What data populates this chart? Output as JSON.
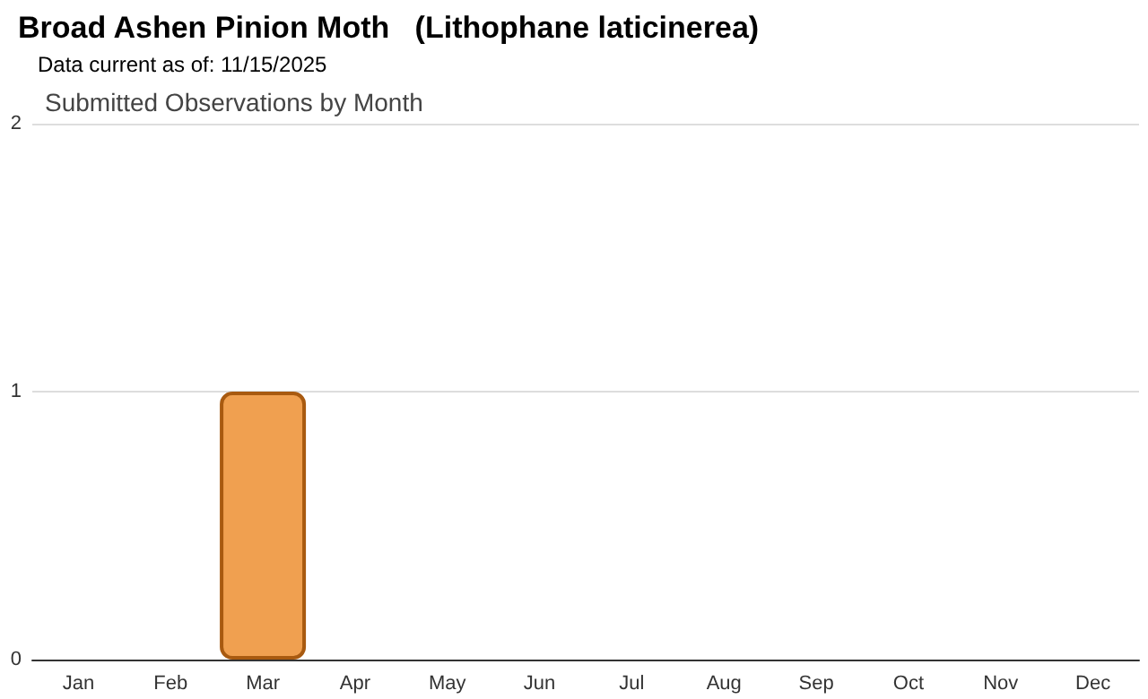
{
  "chart_data": {
    "type": "bar",
    "title": "Broad Ashen Pinion Moth   (Lithophane laticinerea)",
    "subtitle": "Data current as of: 11/15/2025",
    "annotations": [
      "Submitted Observations by Month"
    ],
    "categories": [
      "Jan",
      "Feb",
      "Mar",
      "Apr",
      "May",
      "Jun",
      "Jul",
      "Aug",
      "Sep",
      "Oct",
      "Nov",
      "Dec"
    ],
    "values": [
      0,
      0,
      1,
      0,
      0,
      0,
      0,
      0,
      0,
      0,
      0,
      0
    ],
    "color": "#f0a050",
    "ylim": [
      0,
      2
    ],
    "yticks": [
      0,
      1,
      2
    ],
    "grid": "y"
  }
}
